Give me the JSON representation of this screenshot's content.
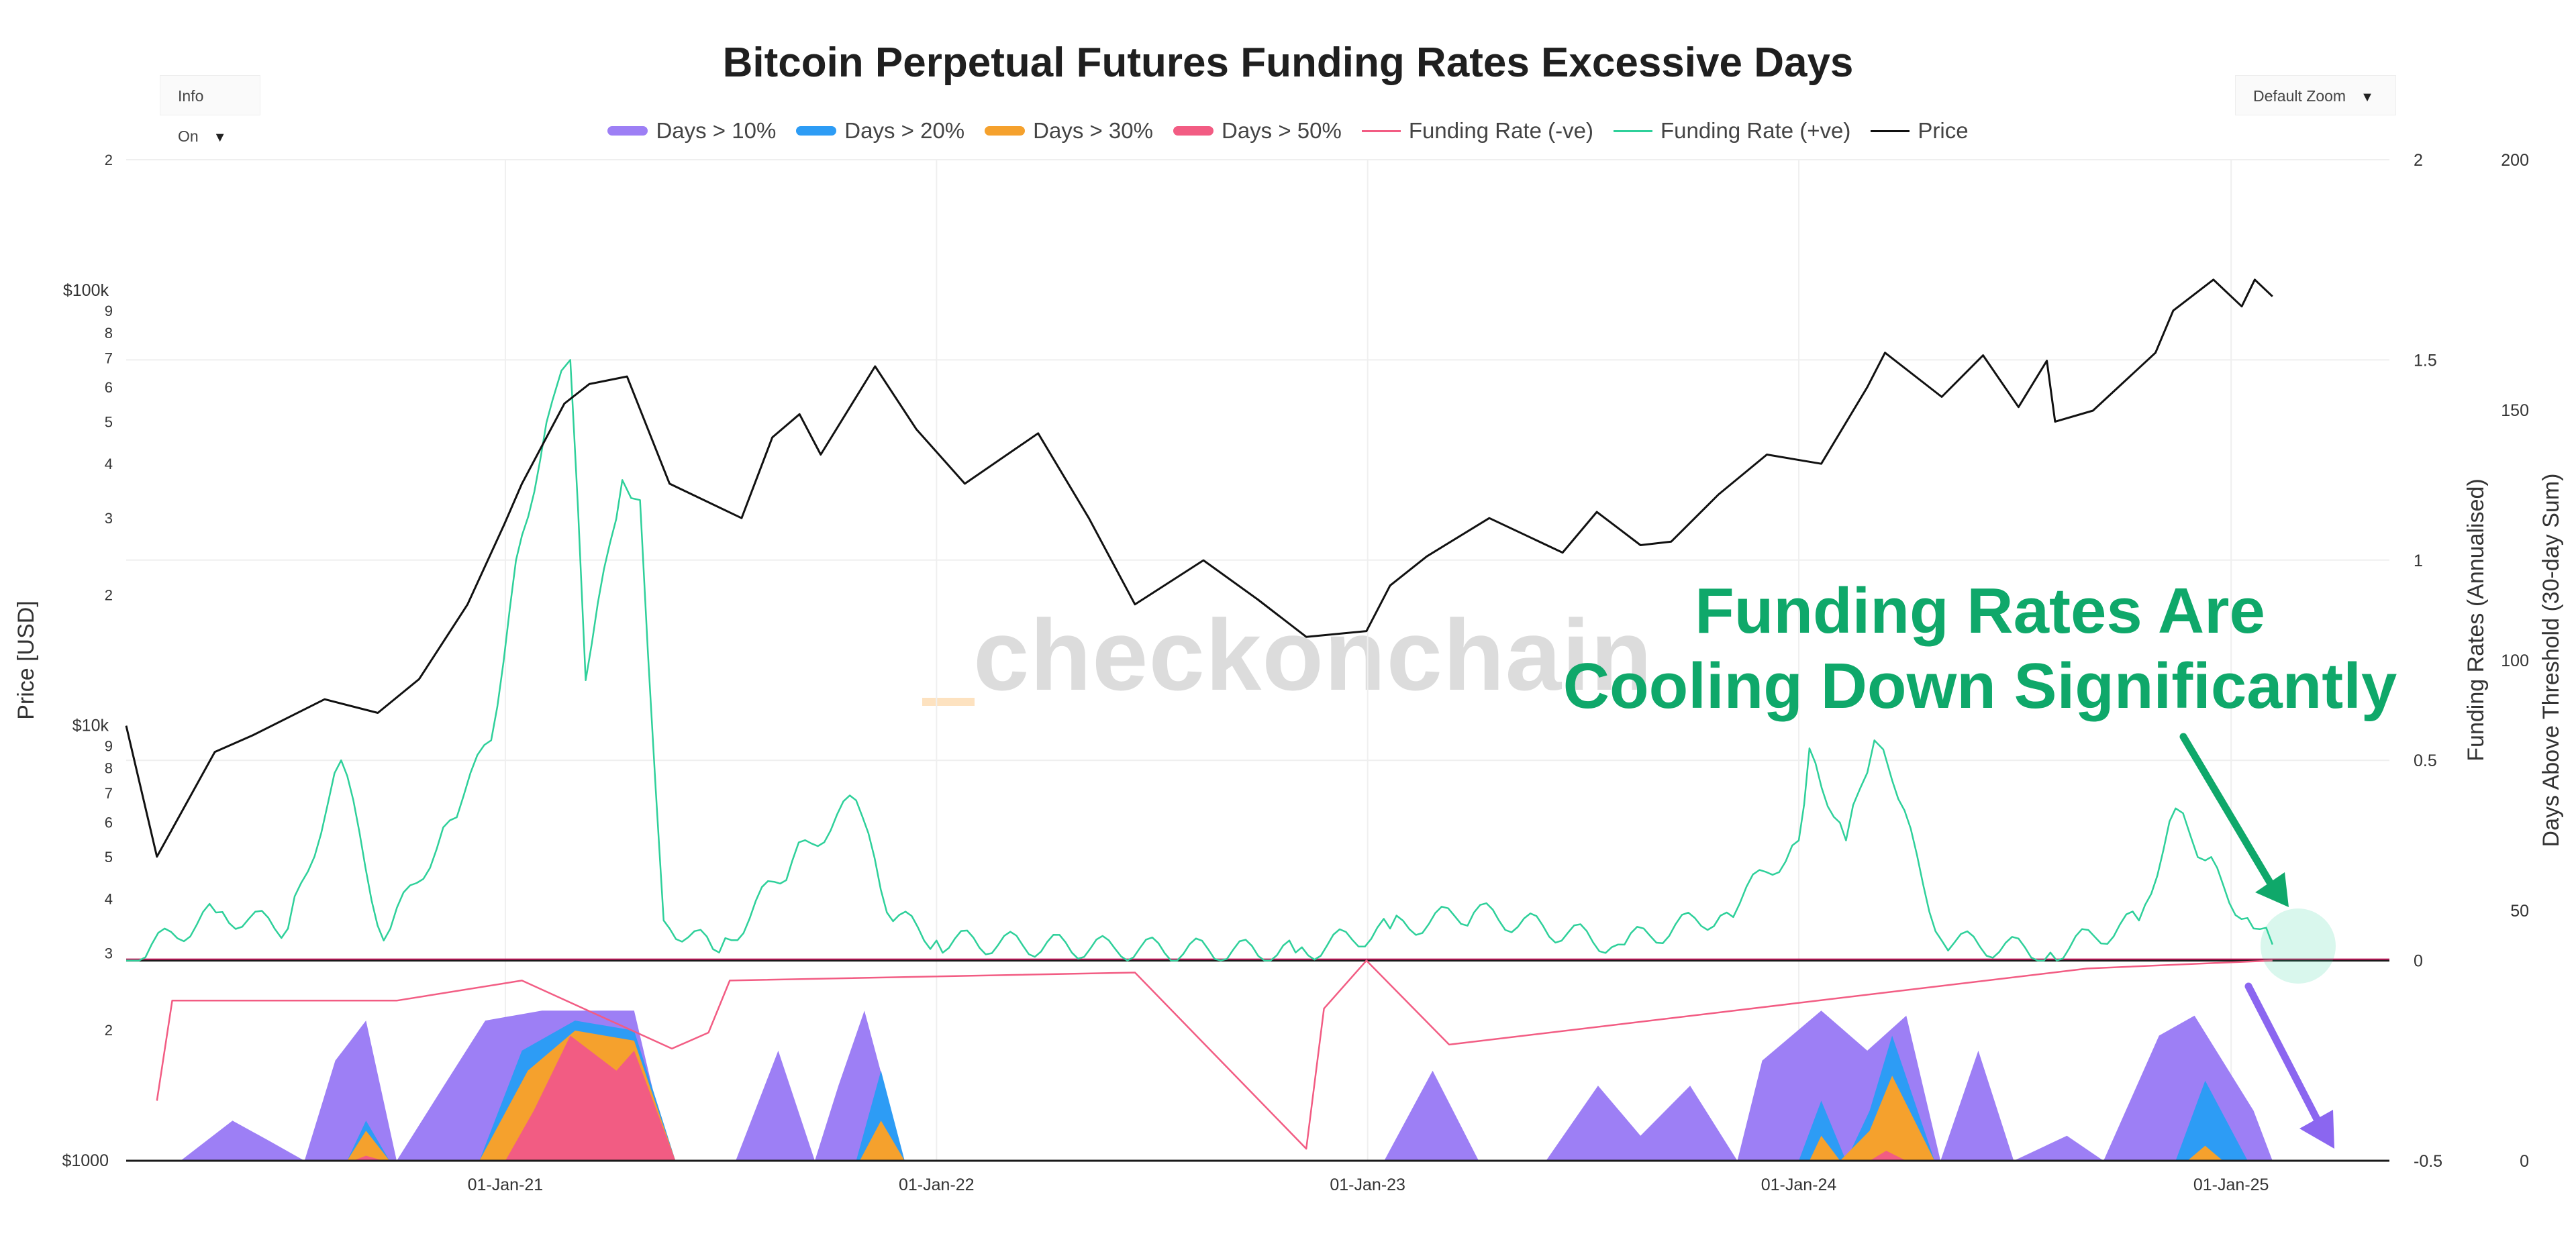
{
  "title": "Bitcoin Perpetual Futures Funding Rates Excessive Days",
  "controls": {
    "info": "Info On",
    "zoom": "Default Zoom",
    "dropdown_glyph": "▼"
  },
  "legend": [
    {
      "label": "Days > 10%",
      "color": "#9d7ff5",
      "kind": "area"
    },
    {
      "label": "Days > 20%",
      "color": "#2d9cf5",
      "kind": "area"
    },
    {
      "label": "Days > 30%",
      "color": "#f5a12d",
      "kind": "area"
    },
    {
      "label": "Days > 50%",
      "color": "#f25c83",
      "kind": "area"
    },
    {
      "label": "Funding Rate (-ve)",
      "color": "#f25c83",
      "kind": "line"
    },
    {
      "label": "Funding Rate (+ve)",
      "color": "#2ed09a",
      "kind": "line"
    },
    {
      "label": "Price",
      "color": "#111111",
      "kind": "line"
    }
  ],
  "watermark": "checkonchain",
  "annotation": {
    "line1": "Funding Rates Are",
    "line2": "Cooling Down Significantly",
    "color": "#0fa86a"
  },
  "chart_data": {
    "type": "line",
    "x_ticks": [
      "01-Jan-21",
      "01-Jan-22",
      "01-Jan-23",
      "01-Jan-24",
      "01-Jan-25"
    ],
    "x_range": [
      "2020-02-15",
      "2025-05-15"
    ],
    "axes": {
      "price": {
        "label": "Price [USD]",
        "scale": "log",
        "range": [
          1000,
          200000
        ],
        "ticks": [
          "$1000",
          "2",
          "3",
          "4",
          "5",
          "6",
          "7",
          "8",
          "9",
          "$10k",
          "2",
          "3",
          "4",
          "5",
          "6",
          "7",
          "8",
          "9",
          "$100k",
          "2"
        ]
      },
      "funding": {
        "label": "Funding Rates (Annualised)",
        "range": [
          -0.5,
          2
        ],
        "ticks": [
          "-0.5",
          "0",
          "0.5",
          "1",
          "1.5",
          "2"
        ]
      },
      "days": {
        "label": "Days Above Threshold (30-day Sum)",
        "range": [
          0,
          200
        ],
        "ticks": [
          "0",
          "50",
          "100",
          "150",
          "200"
        ]
      }
    },
    "series": [
      {
        "name": "Price",
        "axis": "price",
        "points": [
          [
            "2020-02-15",
            10000
          ],
          [
            "2020-03-12",
            5000
          ],
          [
            "2020-04-30",
            8700
          ],
          [
            "2020-06-01",
            9500
          ],
          [
            "2020-08-01",
            11500
          ],
          [
            "2020-09-15",
            10700
          ],
          [
            "2020-10-20",
            12800
          ],
          [
            "2020-11-30",
            19000
          ],
          [
            "2020-12-31",
            29000
          ],
          [
            "2021-01-15",
            36000
          ],
          [
            "2021-02-20",
            55000
          ],
          [
            "2021-03-13",
            61000
          ],
          [
            "2021-04-14",
            63500
          ],
          [
            "2021-05-20",
            36000
          ],
          [
            "2021-07-20",
            30000
          ],
          [
            "2021-08-15",
            46000
          ],
          [
            "2021-09-07",
            52000
          ],
          [
            "2021-09-25",
            42000
          ],
          [
            "2021-11-10",
            67000
          ],
          [
            "2021-12-15",
            48000
          ],
          [
            "2022-01-25",
            36000
          ],
          [
            "2022-03-28",
            47000
          ],
          [
            "2022-05-10",
            30000
          ],
          [
            "2022-06-18",
            19000
          ],
          [
            "2022-08-15",
            24000
          ],
          [
            "2022-09-30",
            19500
          ],
          [
            "2022-11-10",
            16000
          ],
          [
            "2022-12-31",
            16500
          ],
          [
            "2023-01-20",
            21000
          ],
          [
            "2023-02-20",
            24500
          ],
          [
            "2023-04-14",
            30000
          ],
          [
            "2023-06-15",
            25000
          ],
          [
            "2023-07-14",
            31000
          ],
          [
            "2023-08-20",
            26000
          ],
          [
            "2023-09-15",
            26500
          ],
          [
            "2023-10-25",
            34000
          ],
          [
            "2023-12-05",
            42000
          ],
          [
            "2024-01-20",
            40000
          ],
          [
            "2024-02-28",
            60000
          ],
          [
            "2024-03-14",
            72000
          ],
          [
            "2024-05-01",
            57000
          ],
          [
            "2024-06-05",
            71000
          ],
          [
            "2024-07-05",
            54000
          ],
          [
            "2024-07-29",
            69000
          ],
          [
            "2024-08-05",
            50000
          ],
          [
            "2024-09-06",
            53000
          ],
          [
            "2024-10-29",
            72000
          ],
          [
            "2024-11-13",
            90000
          ],
          [
            "2024-12-17",
            106000
          ],
          [
            "2025-01-10",
            92000
          ],
          [
            "2025-01-21",
            106000
          ],
          [
            "2025-02-05",
            97000
          ]
        ]
      },
      {
        "name": "Funding Rate (+ve)",
        "axis": "funding",
        "points": [
          [
            "2020-02-15",
            0.0
          ],
          [
            "2020-05-01",
            0.12
          ],
          [
            "2020-07-01",
            0.08
          ],
          [
            "2020-08-15",
            0.5
          ],
          [
            "2020-09-20",
            0.05
          ],
          [
            "2020-11-15",
            0.35
          ],
          [
            "2020-12-20",
            0.55
          ],
          [
            "2021-01-10",
            1.0
          ],
          [
            "2021-02-10",
            1.4
          ],
          [
            "2021-02-25",
            1.5
          ],
          [
            "2021-03-10",
            0.7
          ],
          [
            "2021-04-10",
            1.2
          ],
          [
            "2021-04-25",
            1.15
          ],
          [
            "2021-05-15",
            0.1
          ],
          [
            "2021-07-01",
            0.02
          ],
          [
            "2021-09-01",
            0.25
          ],
          [
            "2021-10-25",
            0.4
          ],
          [
            "2021-11-20",
            0.12
          ],
          [
            "2022-01-01",
            0.05
          ],
          [
            "2022-06-01",
            0.03
          ],
          [
            "2022-11-01",
            0.02
          ],
          [
            "2023-01-20",
            0.08
          ],
          [
            "2023-04-01",
            0.12
          ],
          [
            "2023-08-01",
            0.04
          ],
          [
            "2023-11-01",
            0.12
          ],
          [
            "2024-01-01",
            0.3
          ],
          [
            "2024-01-10",
            0.53
          ],
          [
            "2024-02-10",
            0.3
          ],
          [
            "2024-03-05",
            0.55
          ],
          [
            "2024-03-20",
            0.45
          ],
          [
            "2024-05-01",
            0.05
          ],
          [
            "2024-08-01",
            0.02
          ],
          [
            "2024-10-15",
            0.1
          ],
          [
            "2024-11-15",
            0.38
          ],
          [
            "2024-12-10",
            0.25
          ],
          [
            "2025-01-20",
            0.08
          ],
          [
            "2025-02-05",
            0.04
          ]
        ]
      },
      {
        "name": "Funding Rate (-ve)",
        "axis": "funding",
        "points": [
          [
            "2020-03-12",
            -0.35
          ],
          [
            "2020-03-25",
            -0.1
          ],
          [
            "2020-10-01",
            -0.1
          ],
          [
            "2021-01-15",
            -0.05
          ],
          [
            "2021-05-22",
            -0.22
          ],
          [
            "2021-06-22",
            -0.18
          ],
          [
            "2021-07-10",
            -0.05
          ],
          [
            "2022-06-18",
            -0.03
          ],
          [
            "2022-11-10",
            -0.47
          ],
          [
            "2022-11-25",
            -0.12
          ],
          [
            "2022-12-31",
            0.0
          ],
          [
            "2023-03-11",
            -0.21
          ],
          [
            "2024-09-01",
            -0.02
          ],
          [
            "2025-02-05",
            0.0
          ]
        ]
      },
      {
        "name": "Days > 10%",
        "axis": "days",
        "kind": "area",
        "points": [
          [
            "2020-04-01",
            0
          ],
          [
            "2020-05-15",
            8
          ],
          [
            "2020-06-15",
            4
          ],
          [
            "2020-07-15",
            0
          ],
          [
            "2020-08-10",
            20
          ],
          [
            "2020-09-05",
            28
          ],
          [
            "2020-10-01",
            0
          ],
          [
            "2020-11-10",
            15
          ],
          [
            "2020-12-15",
            28
          ],
          [
            "2021-02-01",
            30
          ],
          [
            "2021-04-20",
            30
          ],
          [
            "2021-05-20",
            0
          ],
          [
            "2021-07-15",
            0
          ],
          [
            "2021-08-20",
            22
          ],
          [
            "2021-09-20",
            0
          ],
          [
            "2021-10-10",
            15
          ],
          [
            "2021-11-01",
            30
          ],
          [
            "2021-12-05",
            0
          ],
          [
            "2023-01-15",
            0
          ],
          [
            "2023-02-25",
            18
          ],
          [
            "2023-04-05",
            0
          ],
          [
            "2023-06-01",
            0
          ],
          [
            "2023-07-15",
            15
          ],
          [
            "2023-08-20",
            5
          ],
          [
            "2023-10-01",
            15
          ],
          [
            "2023-11-10",
            0
          ],
          [
            "2023-12-01",
            20
          ],
          [
            "2024-01-20",
            30
          ],
          [
            "2024-02-28",
            22
          ],
          [
            "2024-04-01",
            29
          ],
          [
            "2024-04-30",
            0
          ],
          [
            "2024-06-01",
            22
          ],
          [
            "2024-07-01",
            0
          ],
          [
            "2024-08-15",
            5
          ],
          [
            "2024-09-15",
            0
          ],
          [
            "2024-11-01",
            25
          ],
          [
            "2024-12-01",
            29
          ],
          [
            "2025-01-20",
            10
          ],
          [
            "2025-02-05",
            0
          ]
        ]
      },
      {
        "name": "Days > 20%",
        "axis": "days",
        "kind": "area",
        "points": [
          [
            "2020-08-20",
            0
          ],
          [
            "2020-09-05",
            8
          ],
          [
            "2020-09-25",
            0
          ],
          [
            "2020-12-10",
            0
          ],
          [
            "2021-01-15",
            22
          ],
          [
            "2021-03-01",
            28
          ],
          [
            "2021-04-20",
            26
          ],
          [
            "2021-05-25",
            0
          ],
          [
            "2021-10-25",
            0
          ],
          [
            "2021-11-15",
            18
          ],
          [
            "2021-12-05",
            0
          ],
          [
            "2024-01-01",
            0
          ],
          [
            "2024-01-20",
            12
          ],
          [
            "2024-02-10",
            0
          ],
          [
            "2024-03-01",
            10
          ],
          [
            "2024-03-20",
            25
          ],
          [
            "2024-04-25",
            0
          ],
          [
            "2024-11-15",
            0
          ],
          [
            "2024-12-10",
            16
          ],
          [
            "2025-01-15",
            0
          ]
        ]
      },
      {
        "name": "Days > 30%",
        "axis": "days",
        "kind": "area",
        "points": [
          [
            "2020-08-20",
            0
          ],
          [
            "2020-09-05",
            6
          ],
          [
            "2020-09-25",
            0
          ],
          [
            "2020-12-10",
            0
          ],
          [
            "2021-01-20",
            18
          ],
          [
            "2021-03-01",
            26
          ],
          [
            "2021-04-20",
            24
          ],
          [
            "2021-05-25",
            0
          ],
          [
            "2021-10-28",
            0
          ],
          [
            "2021-11-15",
            8
          ],
          [
            "2021-12-05",
            0
          ],
          [
            "2024-01-10",
            0
          ],
          [
            "2024-01-20",
            5
          ],
          [
            "2024-02-05",
            0
          ],
          [
            "2024-03-01",
            6
          ],
          [
            "2024-03-20",
            17
          ],
          [
            "2024-04-25",
            0
          ],
          [
            "2024-11-25",
            0
          ],
          [
            "2024-12-10",
            3
          ],
          [
            "2024-12-25",
            0
          ]
        ]
      },
      {
        "name": "Days > 50%",
        "axis": "days",
        "kind": "area",
        "points": [
          [
            "2020-08-25",
            0
          ],
          [
            "2020-09-05",
            1
          ],
          [
            "2020-09-20",
            0
          ],
          [
            "2021-01-01",
            0
          ],
          [
            "2021-01-25",
            10
          ],
          [
            "2021-02-25",
            25
          ],
          [
            "2021-04-05",
            18
          ],
          [
            "2021-04-20",
            22
          ],
          [
            "2021-05-25",
            0
          ],
          [
            "2024-03-01",
            0
          ],
          [
            "2024-03-15",
            2
          ],
          [
            "2024-04-01",
            0
          ]
        ]
      }
    ]
  }
}
